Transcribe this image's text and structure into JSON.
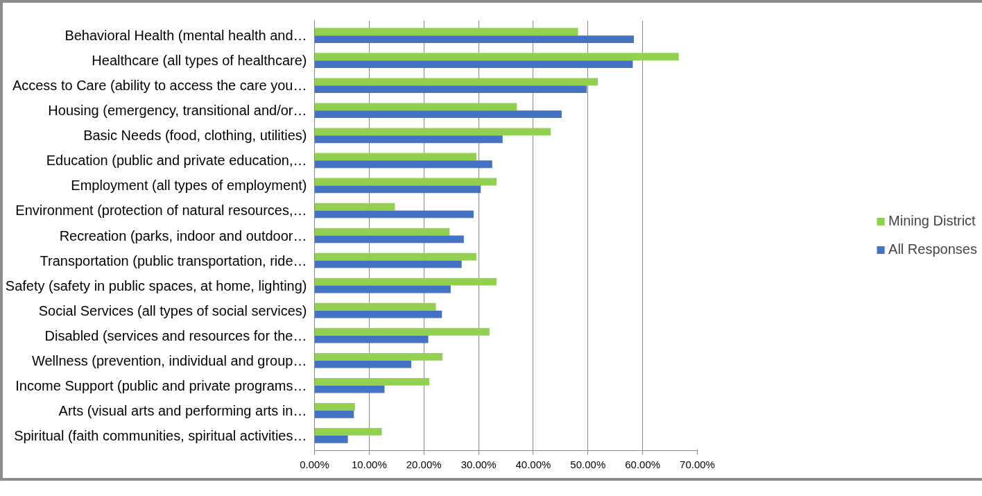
{
  "chart_data": {
    "type": "bar",
    "orientation": "horizontal",
    "categories": [
      "Behavioral Health (mental health and…",
      "Healthcare (all types of healthcare)",
      "Access to Care (ability to access the care you…",
      "Housing (emergency, transitional and/or…",
      "Basic Needs (food, clothing, utilities)",
      "Education (public and private education,…",
      "Employment (all types of employment)",
      "Environment (protection of natural resources,…",
      "Recreation (parks, indoor and outdoor…",
      "Transportation (public transportation, ride…",
      "Safety (safety in public spaces, at home, lighting)",
      "Social Services (all types of social services)",
      "Disabled (services and resources for the…",
      "Wellness (prevention, individual and group…",
      "Income Support (public and private programs…",
      "Arts (visual arts and performing arts in…",
      "Spiritual (faith communities, spiritual activities…"
    ],
    "series": [
      {
        "name": "Mining District",
        "color": "#92d050",
        "values": [
          48.2,
          66.6,
          51.8,
          37.0,
          43.2,
          29.6,
          33.3,
          14.7,
          24.7,
          29.6,
          33.3,
          22.2,
          32.0,
          23.4,
          21.0,
          7.4,
          12.3
        ]
      },
      {
        "name": "All Responses",
        "color": "#4472c4",
        "values": [
          58.4,
          58.2,
          49.8,
          45.2,
          34.4,
          32.5,
          30.4,
          29.1,
          27.3,
          26.9,
          24.9,
          23.3,
          20.8,
          17.7,
          12.8,
          7.2,
          6.1
        ]
      }
    ],
    "xlim": [
      0,
      70
    ],
    "xticks": [
      {
        "value": 0,
        "label": "0.00%"
      },
      {
        "value": 10,
        "label": "10.00%"
      },
      {
        "value": 20,
        "label": "20.00%"
      },
      {
        "value": 30,
        "label": "30.00%"
      },
      {
        "value": 40,
        "label": "40.00%"
      },
      {
        "value": 50,
        "label": "50.00%"
      },
      {
        "value": 60,
        "label": "60.00%"
      },
      {
        "value": 70,
        "label": "70.00%"
      }
    ],
    "grid": "x",
    "legend": "right"
  }
}
